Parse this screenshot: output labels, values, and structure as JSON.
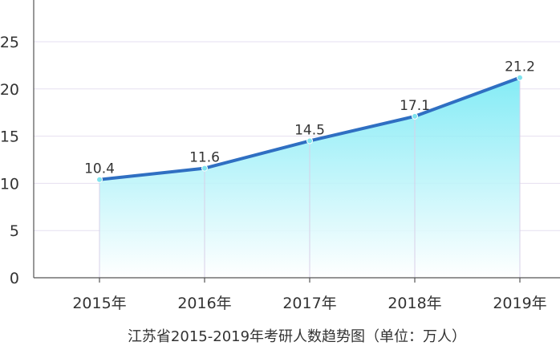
{
  "chart_data": {
    "type": "area",
    "title": "",
    "caption": "江苏省2015-2019年考研人数趋势图（单位：万人）",
    "xlabel": "",
    "ylabel": "",
    "categories": [
      "2015年",
      "2016年",
      "2017年",
      "2018年",
      "2019年"
    ],
    "series": [
      {
        "values": [
          10.4,
          11.6,
          14.5,
          17.1,
          21.2
        ],
        "data_labels": [
          "10.4",
          "11.6",
          "14.5",
          "17.1",
          "21.2"
        ]
      }
    ],
    "ylim": [
      0,
      25
    ],
    "yticks": [
      0,
      5,
      10,
      15,
      20,
      25
    ],
    "ytick_labels": [
      "0",
      "5",
      "10",
      "15",
      "20",
      "25"
    ],
    "grid": true,
    "legend": "none",
    "colors": {
      "line": "#2f6fc2",
      "fill_top": "#6fe8f4",
      "fill_bottom": "#ffffff",
      "marker": "#7fe3ee",
      "grid": "#e6dff0",
      "axis": "#555555"
    }
  }
}
